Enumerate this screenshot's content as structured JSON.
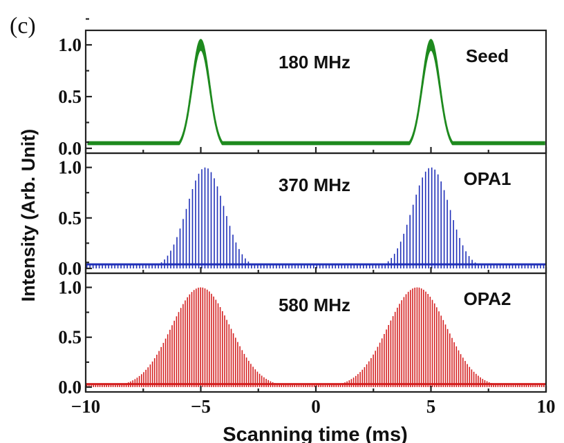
{
  "panel_label": "(c)",
  "chart_data": {
    "type": "line",
    "xlabel": "Scanning time (ms)",
    "ylabel": "Intensity (Arb. Unit)",
    "xlim": [
      -10,
      10
    ],
    "x_ticks": [
      -10,
      -5,
      0,
      5,
      10
    ],
    "x_tick_labels": [
      "−10",
      "−5",
      "0",
      "5",
      "10"
    ],
    "ylim": [
      0,
      1.1
    ],
    "y_tick_labels": [
      "0.0",
      "0.5",
      "1.0"
    ],
    "series": [
      {
        "name": "Seed",
        "annotation": "180 MHz",
        "color": "#1e8a1e",
        "style": "continuous",
        "baseline": 0.05,
        "peaks": [
          {
            "center": -5.0,
            "fwhm": 0.9,
            "height": 1.0
          },
          {
            "center": 5.0,
            "fwhm": 0.9,
            "height": 1.0
          }
        ]
      },
      {
        "name": "OPA1",
        "annotation": "370 MHz",
        "color": "#1f2fb8",
        "style": "comb",
        "baseline": 0.04,
        "line_spacing": 0.135,
        "peaks": [
          {
            "center": -4.8,
            "fwhm": 1.9,
            "height": 1.0
          },
          {
            "center": 5.0,
            "fwhm": 1.9,
            "height": 1.0
          }
        ]
      },
      {
        "name": "OPA2",
        "annotation": "580 MHz",
        "color": "#d42020",
        "style": "comb",
        "baseline": 0.03,
        "line_spacing": 0.095,
        "peaks": [
          {
            "center": -5.0,
            "fwhm": 3.0,
            "height": 1.0
          },
          {
            "center": 4.4,
            "fwhm": 3.0,
            "height": 1.0
          }
        ]
      }
    ]
  }
}
